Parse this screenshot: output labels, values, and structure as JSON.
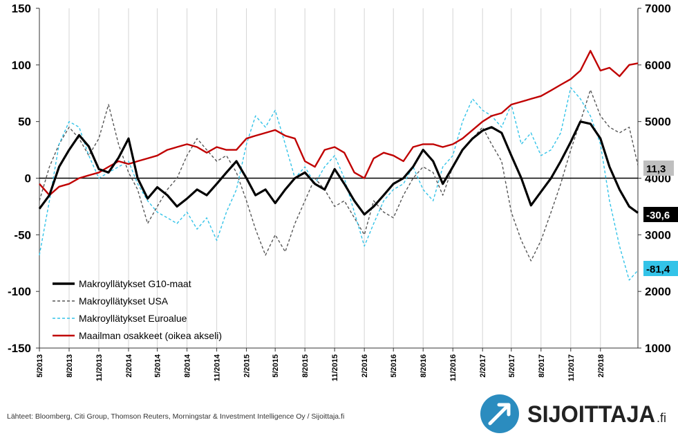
{
  "chart_data": {
    "type": "line",
    "title": "",
    "xlabel": "",
    "ylabel": "",
    "ylim": [
      -150,
      150
    ],
    "y2lim": [
      1000,
      7000
    ],
    "y_ticks": [
      "150",
      "100",
      "50",
      "0",
      "-50",
      "-100",
      "-150"
    ],
    "y_tick_values": [
      150,
      100,
      50,
      0,
      -50,
      -100,
      -150
    ],
    "y2_ticks": [
      "7000",
      "6000",
      "5000",
      "4000",
      "3000",
      "2000",
      "1000"
    ],
    "y2_tick_values": [
      7000,
      6000,
      5000,
      4000,
      3000,
      2000,
      1000
    ],
    "x_range": [
      "2013-05",
      "2018-05"
    ],
    "x_ticks": [
      "5/2013",
      "8/2013",
      "11/2013",
      "2/2014",
      "5/2014",
      "8/2014",
      "11/2014",
      "2/2015",
      "5/2015",
      "8/2015",
      "11/2015",
      "2/2016",
      "5/2016",
      "8/2016",
      "11/2016",
      "2/2017",
      "5/2017",
      "8/2017",
      "11/2017",
      "2/2018"
    ],
    "grid": "vertical",
    "legend_position": "bottom-left",
    "series": [
      {
        "name": "Makroyllätykset G10-maat",
        "color": "#000000",
        "axis": "left",
        "style": "solid",
        "points": [
          [
            "2013-05",
            -27
          ],
          [
            "2013-06",
            -15
          ],
          [
            "2013-07",
            10
          ],
          [
            "2013-08",
            25
          ],
          [
            "2013-09",
            38
          ],
          [
            "2013-10",
            28
          ],
          [
            "2013-11",
            8
          ],
          [
            "2013-12",
            5
          ],
          [
            "2014-01",
            18
          ],
          [
            "2014-02",
            35
          ],
          [
            "2014-03",
            0
          ],
          [
            "2014-04",
            -18
          ],
          [
            "2014-05",
            -8
          ],
          [
            "2014-06",
            -15
          ],
          [
            "2014-07",
            -25
          ],
          [
            "2014-08",
            -18
          ],
          [
            "2014-09",
            -10
          ],
          [
            "2014-10",
            -15
          ],
          [
            "2014-11",
            -5
          ],
          [
            "2014-12",
            5
          ],
          [
            "2015-01",
            15
          ],
          [
            "2015-02",
            0
          ],
          [
            "2015-03",
            -15
          ],
          [
            "2015-04",
            -10
          ],
          [
            "2015-05",
            -22
          ],
          [
            "2015-06",
            -10
          ],
          [
            "2015-07",
            0
          ],
          [
            "2015-08",
            5
          ],
          [
            "2015-09",
            -5
          ],
          [
            "2015-10",
            -10
          ],
          [
            "2015-11",
            8
          ],
          [
            "2015-12",
            -5
          ],
          [
            "2016-01",
            -20
          ],
          [
            "2016-02",
            -32
          ],
          [
            "2016-03",
            -25
          ],
          [
            "2016-04",
            -15
          ],
          [
            "2016-05",
            -5
          ],
          [
            "2016-06",
            0
          ],
          [
            "2016-07",
            10
          ],
          [
            "2016-08",
            25
          ],
          [
            "2016-09",
            15
          ],
          [
            "2016-10",
            -5
          ],
          [
            "2016-11",
            10
          ],
          [
            "2016-12",
            25
          ],
          [
            "2017-01",
            35
          ],
          [
            "2017-02",
            42
          ],
          [
            "2017-03",
            45
          ],
          [
            "2017-04",
            40
          ],
          [
            "2017-05",
            20
          ],
          [
            "2017-06",
            0
          ],
          [
            "2017-07",
            -24
          ],
          [
            "2017-08",
            -12
          ],
          [
            "2017-09",
            0
          ],
          [
            "2017-10",
            15
          ],
          [
            "2017-11",
            32
          ],
          [
            "2017-12",
            50
          ],
          [
            "2018-01",
            48
          ],
          [
            "2018-02",
            35
          ],
          [
            "2018-03",
            10
          ],
          [
            "2018-04",
            -10
          ],
          [
            "2018-05",
            -25
          ],
          [
            "2018-05-28",
            -30.6
          ]
        ]
      },
      {
        "name": "Makroyllätykset USA",
        "color": "#555555",
        "axis": "left",
        "style": "dashed",
        "points": [
          [
            "2013-05",
            -20
          ],
          [
            "2013-06",
            10
          ],
          [
            "2013-07",
            30
          ],
          [
            "2013-08",
            45
          ],
          [
            "2013-09",
            35
          ],
          [
            "2013-10",
            20
          ],
          [
            "2013-11",
            35
          ],
          [
            "2013-12",
            65
          ],
          [
            "2014-01",
            30
          ],
          [
            "2014-02",
            5
          ],
          [
            "2014-03",
            -10
          ],
          [
            "2014-04",
            -40
          ],
          [
            "2014-05",
            -25
          ],
          [
            "2014-06",
            -10
          ],
          [
            "2014-07",
            0
          ],
          [
            "2014-08",
            20
          ],
          [
            "2014-09",
            35
          ],
          [
            "2014-10",
            25
          ],
          [
            "2014-11",
            15
          ],
          [
            "2014-12",
            20
          ],
          [
            "2015-01",
            5
          ],
          [
            "2015-02",
            -20
          ],
          [
            "2015-03",
            -45
          ],
          [
            "2015-04",
            -68
          ],
          [
            "2015-05",
            -50
          ],
          [
            "2015-06",
            -65
          ],
          [
            "2015-07",
            -40
          ],
          [
            "2015-08",
            -20
          ],
          [
            "2015-09",
            0
          ],
          [
            "2015-10",
            -10
          ],
          [
            "2015-11",
            -25
          ],
          [
            "2015-12",
            -20
          ],
          [
            "2016-01",
            -35
          ],
          [
            "2016-02",
            -50
          ],
          [
            "2016-03",
            -20
          ],
          [
            "2016-04",
            -30
          ],
          [
            "2016-05",
            -35
          ],
          [
            "2016-06",
            -15
          ],
          [
            "2016-07",
            0
          ],
          [
            "2016-08",
            10
          ],
          [
            "2016-09",
            5
          ],
          [
            "2016-10",
            -15
          ],
          [
            "2016-11",
            10
          ],
          [
            "2016-12",
            25
          ],
          [
            "2017-01",
            35
          ],
          [
            "2017-02",
            45
          ],
          [
            "2017-03",
            30
          ],
          [
            "2017-04",
            15
          ],
          [
            "2017-05",
            -30
          ],
          [
            "2017-06",
            -55
          ],
          [
            "2017-07",
            -73
          ],
          [
            "2017-08",
            -55
          ],
          [
            "2017-09",
            -30
          ],
          [
            "2017-10",
            -5
          ],
          [
            "2017-11",
            25
          ],
          [
            "2017-12",
            50
          ],
          [
            "2018-01",
            78
          ],
          [
            "2018-02",
            55
          ],
          [
            "2018-03",
            45
          ],
          [
            "2018-04",
            40
          ],
          [
            "2018-05",
            45
          ],
          [
            "2018-05-28",
            11.3
          ]
        ]
      },
      {
        "name": "Makroyllätykset Euroalue",
        "color": "#33c3e8",
        "axis": "left",
        "style": "dashed",
        "points": [
          [
            "2013-05",
            -68
          ],
          [
            "2013-06",
            -20
          ],
          [
            "2013-07",
            30
          ],
          [
            "2013-08",
            50
          ],
          [
            "2013-09",
            45
          ],
          [
            "2013-10",
            20
          ],
          [
            "2013-11",
            0
          ],
          [
            "2013-12",
            5
          ],
          [
            "2014-01",
            10
          ],
          [
            "2014-02",
            15
          ],
          [
            "2014-03",
            -5
          ],
          [
            "2014-04",
            -20
          ],
          [
            "2014-05",
            -30
          ],
          [
            "2014-06",
            -35
          ],
          [
            "2014-07",
            -40
          ],
          [
            "2014-08",
            -30
          ],
          [
            "2014-09",
            -45
          ],
          [
            "2014-10",
            -35
          ],
          [
            "2014-11",
            -55
          ],
          [
            "2014-12",
            -30
          ],
          [
            "2015-01",
            -10
          ],
          [
            "2015-02",
            30
          ],
          [
            "2015-03",
            55
          ],
          [
            "2015-04",
            45
          ],
          [
            "2015-05",
            60
          ],
          [
            "2015-06",
            30
          ],
          [
            "2015-07",
            0
          ],
          [
            "2015-08",
            10
          ],
          [
            "2015-09",
            -5
          ],
          [
            "2015-10",
            10
          ],
          [
            "2015-11",
            20
          ],
          [
            "2015-12",
            0
          ],
          [
            "2016-01",
            -30
          ],
          [
            "2016-02",
            -60
          ],
          [
            "2016-03",
            -40
          ],
          [
            "2016-04",
            -20
          ],
          [
            "2016-05",
            -10
          ],
          [
            "2016-06",
            -5
          ],
          [
            "2016-07",
            10
          ],
          [
            "2016-08",
            -10
          ],
          [
            "2016-09",
            -20
          ],
          [
            "2016-10",
            10
          ],
          [
            "2016-11",
            20
          ],
          [
            "2016-12",
            50
          ],
          [
            "2017-01",
            70
          ],
          [
            "2017-02",
            60
          ],
          [
            "2017-03",
            55
          ],
          [
            "2017-04",
            45
          ],
          [
            "2017-05",
            65
          ],
          [
            "2017-06",
            30
          ],
          [
            "2017-07",
            40
          ],
          [
            "2017-08",
            20
          ],
          [
            "2017-09",
            25
          ],
          [
            "2017-10",
            40
          ],
          [
            "2017-11",
            80
          ],
          [
            "2017-12",
            70
          ],
          [
            "2018-01",
            55
          ],
          [
            "2018-02",
            30
          ],
          [
            "2018-03",
            -20
          ],
          [
            "2018-04",
            -60
          ],
          [
            "2018-05",
            -90
          ],
          [
            "2018-05-28",
            -81.4
          ]
        ]
      },
      {
        "name": "Maailman osakkeet (oikea akseli)",
        "color": "#c00000",
        "axis": "right",
        "style": "solid",
        "points": [
          [
            "2013-05",
            3900
          ],
          [
            "2013-06",
            3700
          ],
          [
            "2013-07",
            3850
          ],
          [
            "2013-08",
            3900
          ],
          [
            "2013-09",
            4000
          ],
          [
            "2013-10",
            4050
          ],
          [
            "2013-11",
            4100
          ],
          [
            "2013-12",
            4200
          ],
          [
            "2014-01",
            4300
          ],
          [
            "2014-02",
            4250
          ],
          [
            "2014-03",
            4300
          ],
          [
            "2014-04",
            4350
          ],
          [
            "2014-05",
            4400
          ],
          [
            "2014-06",
            4500
          ],
          [
            "2014-07",
            4550
          ],
          [
            "2014-08",
            4600
          ],
          [
            "2014-09",
            4550
          ],
          [
            "2014-10",
            4450
          ],
          [
            "2014-11",
            4550
          ],
          [
            "2014-12",
            4500
          ],
          [
            "2015-01",
            4500
          ],
          [
            "2015-02",
            4700
          ],
          [
            "2015-03",
            4750
          ],
          [
            "2015-04",
            4800
          ],
          [
            "2015-05",
            4850
          ],
          [
            "2015-06",
            4750
          ],
          [
            "2015-07",
            4700
          ],
          [
            "2015-08",
            4300
          ],
          [
            "2015-09",
            4200
          ],
          [
            "2015-10",
            4500
          ],
          [
            "2015-11",
            4550
          ],
          [
            "2015-12",
            4450
          ],
          [
            "2016-01",
            4100
          ],
          [
            "2016-02",
            4000
          ],
          [
            "2016-03",
            4350
          ],
          [
            "2016-04",
            4450
          ],
          [
            "2016-05",
            4400
          ],
          [
            "2016-06",
            4300
          ],
          [
            "2016-07",
            4550
          ],
          [
            "2016-08",
            4600
          ],
          [
            "2016-09",
            4600
          ],
          [
            "2016-10",
            4550
          ],
          [
            "2016-11",
            4600
          ],
          [
            "2016-12",
            4700
          ],
          [
            "2017-01",
            4850
          ],
          [
            "2017-02",
            5000
          ],
          [
            "2017-03",
            5100
          ],
          [
            "2017-04",
            5150
          ],
          [
            "2017-05",
            5300
          ],
          [
            "2017-06",
            5350
          ],
          [
            "2017-07",
            5400
          ],
          [
            "2017-08",
            5450
          ],
          [
            "2017-09",
            5550
          ],
          [
            "2017-10",
            5650
          ],
          [
            "2017-11",
            5750
          ],
          [
            "2017-12",
            5900
          ],
          [
            "2018-01",
            6250
          ],
          [
            "2018-02",
            5900
          ],
          [
            "2018-03",
            5950
          ],
          [
            "2018-04",
            5800
          ],
          [
            "2018-05",
            6000
          ],
          [
            "2018-05-28",
            6030
          ]
        ]
      }
    ],
    "end_labels": [
      {
        "series": "Makroyllätykset USA",
        "text": "11,3",
        "value": 11.3,
        "bg": "#bfbfbf",
        "fg": "#000000"
      },
      {
        "series": "Makroyllätykset G10-maat",
        "text": "-30,6",
        "value": -30.6,
        "bg": "#000000",
        "fg": "#ffffff"
      },
      {
        "series": "Makroyllätykset Euroalue",
        "text": "-81,4",
        "value": -81.4,
        "bg": "#33c3e8",
        "fg": "#000000"
      }
    ]
  },
  "footer": {
    "source": "Lähteet: Bloomberg, Citi Group, Thomson Reuters, Morningstar & Investment Intelligence Oy / Sijoittaja.fi"
  },
  "brand": {
    "name": "SIJOITTAJA",
    "suffix": ".fi",
    "icon": "arrow-up-right-circle-icon",
    "color": "#2b8cbf"
  }
}
